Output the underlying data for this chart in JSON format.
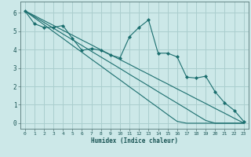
{
  "xlabel": "Humidex (Indice chaleur)",
  "bg_color": "#cce8e8",
  "grid_color": "#aacece",
  "line_color": "#1a6e6e",
  "marker_color": "#1a6e6e",
  "x_ticks": [
    0,
    1,
    2,
    3,
    4,
    5,
    6,
    7,
    8,
    9,
    10,
    11,
    12,
    13,
    14,
    15,
    16,
    17,
    18,
    19,
    20,
    21,
    22,
    23
  ],
  "y_ticks": [
    0,
    1,
    2,
    3,
    4,
    5,
    6
  ],
  "ylim": [
    -0.3,
    6.6
  ],
  "xlim": [
    -0.5,
    23.5
  ],
  "series1": [
    6.1,
    5.4,
    5.2,
    5.2,
    5.3,
    4.6,
    3.95,
    4.05,
    3.95,
    3.7,
    3.55,
    4.7,
    5.2,
    5.6,
    3.8,
    3.8,
    3.6,
    2.5,
    2.45,
    2.55,
    1.7,
    1.1,
    0.7,
    0.1
  ],
  "series2": [
    6.1,
    5.84,
    5.57,
    5.31,
    5.04,
    4.78,
    4.51,
    4.25,
    3.98,
    3.72,
    3.45,
    3.19,
    2.92,
    2.66,
    2.39,
    2.13,
    1.86,
    1.6,
    1.33,
    1.07,
    0.8,
    0.54,
    0.27,
    0.01
  ],
  "series3": [
    6.1,
    5.78,
    5.47,
    5.16,
    4.84,
    4.53,
    4.22,
    3.9,
    3.59,
    3.28,
    2.97,
    2.65,
    2.34,
    2.03,
    1.71,
    1.4,
    1.09,
    0.78,
    0.46,
    0.15,
    0.0,
    0.0,
    0.0,
    0.0
  ],
  "series4": [
    6.1,
    5.72,
    5.35,
    4.97,
    4.6,
    4.22,
    3.85,
    3.47,
    3.1,
    2.72,
    2.35,
    1.97,
    1.6,
    1.22,
    0.85,
    0.47,
    0.1,
    0.0,
    0.0,
    0.0,
    0.0,
    0.0,
    0.0,
    0.0
  ]
}
